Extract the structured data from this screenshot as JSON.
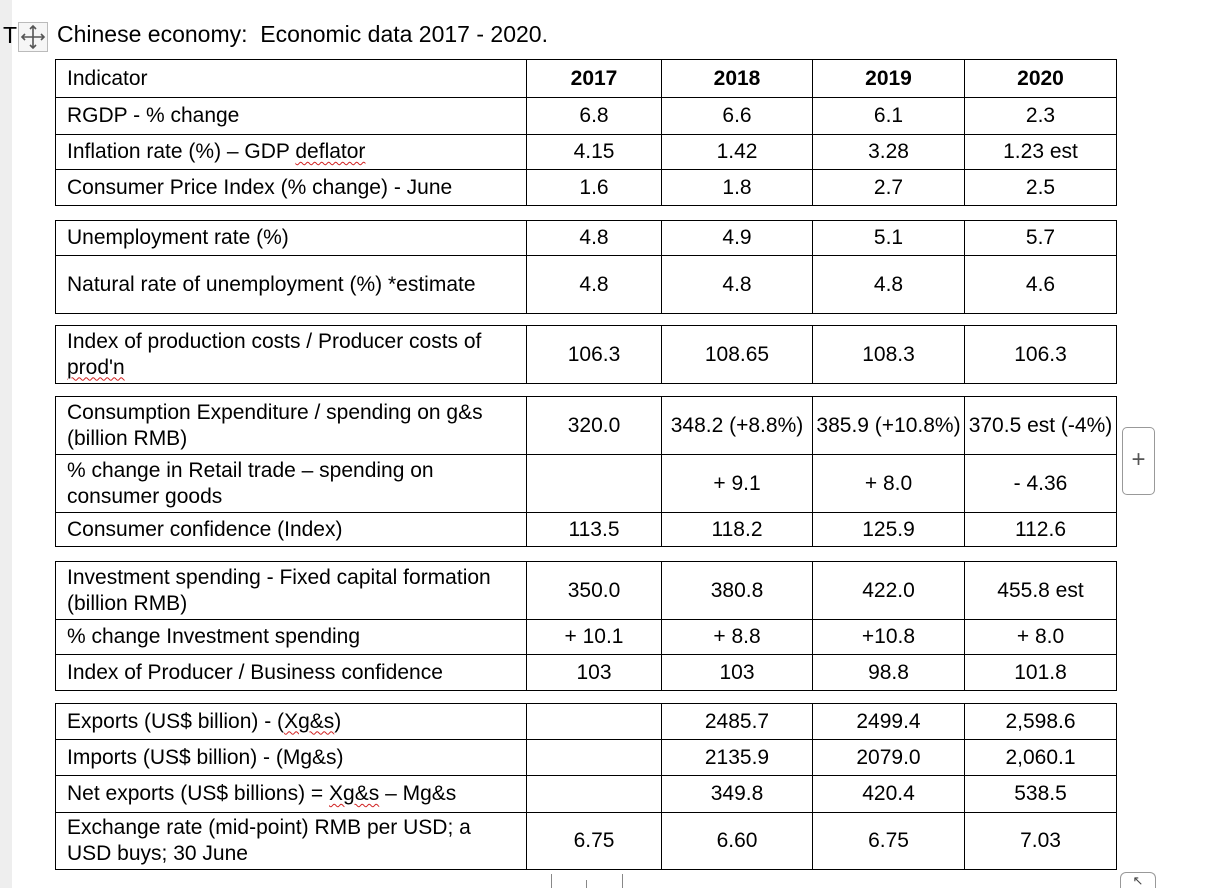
{
  "title": {
    "cutoff_char": "T",
    "text": "Chinese economy:  Economic data 2017 - 2020."
  },
  "icons": {
    "move_handle": "move-arrows-icon",
    "add_column": "plus-icon",
    "resize_corner": "resize-arrow-icon"
  },
  "table": {
    "header": [
      "Indicator",
      "2017",
      "2018",
      "2019",
      "2020"
    ],
    "blocks": [
      {
        "rows": [
          {
            "indicator": "RGDP - % change",
            "values": [
              "6.8",
              "6.6",
              "6.1",
              "2.3"
            ]
          },
          {
            "indicator": "Inflation rate (%) – GDP deflator",
            "values": [
              "4.15",
              "1.42",
              "3.28",
              "1.23 est"
            ]
          },
          {
            "indicator": "Consumer Price Index (% change) - June",
            "values": [
              "1.6",
              "1.8",
              "2.7",
              "2.5"
            ]
          }
        ]
      },
      {
        "rows": [
          {
            "indicator": "Unemployment rate (%)",
            "values": [
              "4.8",
              "4.9",
              "5.1",
              "5.7"
            ]
          },
          {
            "indicator": "Natural rate of unemployment (%) *estimate",
            "values": [
              "4.8",
              "4.8",
              "4.8",
              "4.6"
            ]
          }
        ]
      },
      {
        "rows": [
          {
            "indicator": "Index of production costs / Producer costs of prod'n",
            "values": [
              "106.3",
              "108.65",
              "108.3",
              "106.3"
            ]
          }
        ]
      },
      {
        "rows": [
          {
            "indicator": "Consumption Expenditure / spending on g&s (billion RMB)",
            "values": [
              "320.0",
              "348.2 (+8.8%)",
              "385.9 (+10.8%)",
              "370.5 est (-4%)"
            ]
          },
          {
            "indicator": "% change in Retail trade – spending on consumer goods",
            "values": [
              "",
              "+ 9.1",
              "+ 8.0",
              "- 4.36"
            ]
          },
          {
            "indicator": "Consumer confidence (Index)",
            "values": [
              "113.5",
              "118.2",
              "125.9",
              "112.6"
            ]
          }
        ]
      },
      {
        "rows": [
          {
            "indicator": "Investment spending - Fixed capital formation (billion RMB)",
            "values": [
              "350.0",
              "380.8",
              "422.0",
              "455.8 est"
            ]
          },
          {
            "indicator": "% change Investment spending",
            "values": [
              "+ 10.1",
              "+ 8.8",
              "+10.8",
              "+ 8.0"
            ]
          },
          {
            "indicator": "Index of Producer / Business confidence",
            "values": [
              "103",
              "103",
              "98.8",
              "101.8"
            ]
          }
        ]
      },
      {
        "rows": [
          {
            "indicator": "Exports (US$ billion) - (Xg&s)",
            "values": [
              "",
              "2485.7",
              "2499.4",
              "2,598.6"
            ]
          },
          {
            "indicator": "Imports (US$ billion) - (Mg&s)",
            "values": [
              "",
              "2135.9",
              "2079.0",
              "2,060.1"
            ]
          },
          {
            "indicator": "Net exports (US$ billions) = Xg&s – Mg&s",
            "values": [
              "",
              "349.8",
              "420.4",
              "538.5"
            ]
          },
          {
            "indicator": "Exchange rate (mid-point) RMB per USD; a USD buys; 30 June",
            "values": [
              "6.75",
              "6.60",
              "6.75",
              "7.03"
            ]
          }
        ]
      }
    ]
  },
  "colors": {
    "spellcheck": "#d02020",
    "border": "#000000",
    "chrome": "#eeeeee"
  }
}
